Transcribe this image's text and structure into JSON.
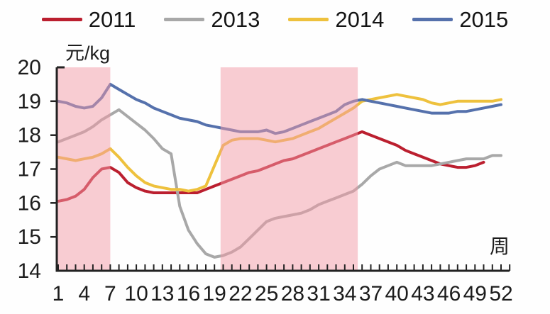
{
  "legend": {
    "items": [
      {
        "label": "2011",
        "color": "#bb1f2f"
      },
      {
        "label": "2013",
        "color": "#a8a8a8"
      },
      {
        "label": "2014",
        "color": "#eec13d"
      },
      {
        "label": "2015",
        "color": "#5571ac"
      }
    ]
  },
  "chart_data": {
    "type": "line",
    "title": "",
    "ylabel": "元/kg",
    "xlabel": "周",
    "ylim": [
      14,
      20
    ],
    "yticks": [
      14,
      15,
      16,
      17,
      18,
      19,
      20
    ],
    "x_range": [
      1,
      52
    ],
    "x_labeled_ticks": [
      1,
      4,
      7,
      10,
      13,
      16,
      19,
      22,
      25,
      28,
      31,
      34,
      37,
      40,
      43,
      46,
      49,
      52
    ],
    "grid": false,
    "legend_position": "top",
    "band_color": "#f29aa6",
    "highlight_bands": [
      {
        "from_week": 1,
        "to_week": 7
      },
      {
        "from_week": 19.7,
        "to_week": 35.5
      }
    ],
    "series": [
      {
        "name": "2011",
        "color": "#bb1f2f",
        "values": [
          16.05,
          16.1,
          16.2,
          16.4,
          16.75,
          17.0,
          17.05,
          16.9,
          16.6,
          16.45,
          16.35,
          16.3,
          16.3,
          16.3,
          16.3,
          16.3,
          16.3,
          16.4,
          16.5,
          16.6,
          16.7,
          16.8,
          16.9,
          16.95,
          17.05,
          17.15,
          17.25,
          17.3,
          17.4,
          17.5,
          17.6,
          17.7,
          17.8,
          17.9,
          18.0,
          18.1,
          18.0,
          17.9,
          17.8,
          17.7,
          17.55,
          17.45,
          17.35,
          17.25,
          17.15,
          17.1,
          17.05,
          17.05,
          17.1,
          17.2,
          null,
          null
        ]
      },
      {
        "name": "2013",
        "color": "#a8a8a8",
        "values": [
          17.8,
          17.9,
          18.0,
          18.1,
          18.25,
          18.45,
          18.6,
          18.75,
          18.55,
          18.35,
          18.15,
          17.9,
          17.6,
          17.45,
          15.9,
          15.2,
          14.8,
          14.5,
          14.4,
          14.45,
          14.55,
          14.7,
          14.95,
          15.2,
          15.45,
          15.55,
          15.6,
          15.65,
          15.7,
          15.8,
          15.95,
          16.05,
          16.15,
          16.25,
          16.35,
          16.55,
          16.8,
          17.0,
          17.1,
          17.2,
          17.1,
          17.1,
          17.1,
          17.1,
          17.15,
          17.2,
          17.25,
          17.3,
          17.3,
          17.3,
          17.4,
          17.4
        ]
      },
      {
        "name": "2014",
        "color": "#eec13d",
        "values": [
          17.35,
          17.3,
          17.25,
          17.3,
          17.35,
          17.45,
          17.6,
          17.35,
          17.05,
          16.8,
          16.6,
          16.5,
          16.45,
          16.4,
          16.4,
          16.35,
          16.4,
          16.5,
          17.1,
          17.7,
          17.85,
          17.9,
          17.9,
          17.9,
          17.85,
          17.8,
          17.85,
          17.9,
          18.0,
          18.1,
          18.2,
          18.35,
          18.5,
          18.65,
          18.8,
          19.0,
          19.05,
          19.1,
          19.15,
          19.2,
          19.15,
          19.1,
          19.05,
          18.95,
          18.9,
          18.95,
          19.0,
          19.0,
          19.0,
          19.0,
          19.0,
          19.05
        ]
      },
      {
        "name": "2015",
        "color": "#5571ac",
        "values": [
          19.0,
          18.95,
          18.85,
          18.8,
          18.85,
          19.1,
          19.5,
          19.35,
          19.2,
          19.05,
          18.95,
          18.8,
          18.7,
          18.6,
          18.5,
          18.45,
          18.4,
          18.3,
          18.25,
          18.2,
          18.15,
          18.1,
          18.1,
          18.1,
          18.15,
          18.05,
          18.1,
          18.2,
          18.3,
          18.4,
          18.5,
          18.6,
          18.7,
          18.9,
          19.0,
          19.05,
          19.0,
          18.95,
          18.9,
          18.85,
          18.8,
          18.75,
          18.7,
          18.65,
          18.65,
          18.65,
          18.7,
          18.7,
          18.75,
          18.8,
          18.85,
          18.9
        ]
      }
    ]
  }
}
